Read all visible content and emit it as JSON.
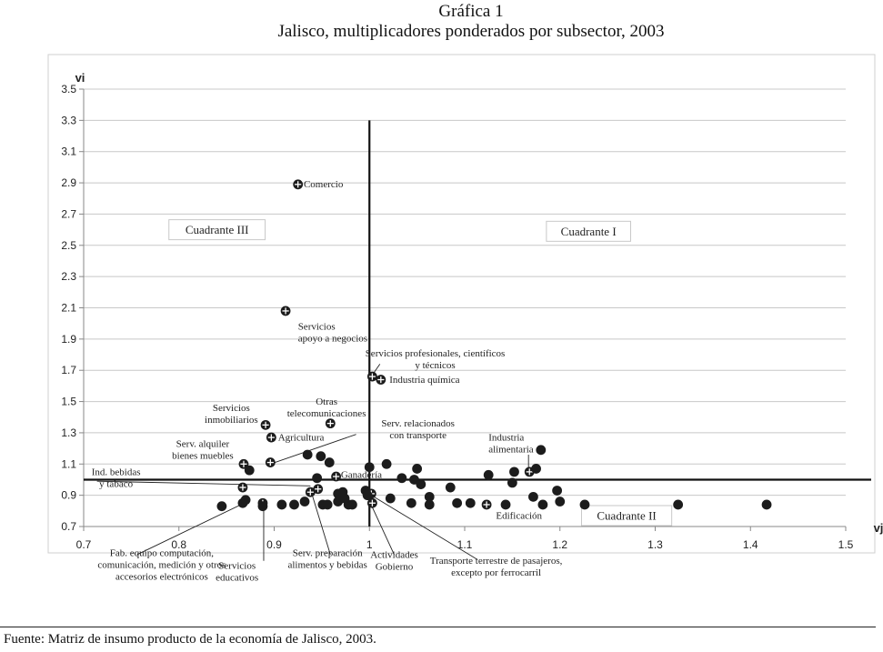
{
  "figure": {
    "title_line1": "Gráfica 1",
    "title_line2": "Jalisco, multiplicadores ponderados por subsector, 2003",
    "source": "Fuente: Matriz de insumo producto de la economía de Jalisco, 2003."
  },
  "chart_data": {
    "type": "scatter",
    "xlabel": "vj",
    "ylabel": "vi",
    "xlim": [
      0.7,
      1.5
    ],
    "ylim": [
      0.7,
      3.5
    ],
    "x_ticks": [
      0.7,
      0.8,
      0.9,
      1,
      1.1,
      1.2,
      1.3,
      1.4,
      1.5
    ],
    "x_tick_labels": [
      "0.7",
      "0.8",
      "0.9",
      "1",
      "1.1",
      "1.2",
      "1.3",
      "1.4",
      "1.5"
    ],
    "y_ticks": [
      0.7,
      0.9,
      1.1,
      1.3,
      1.5,
      1.7,
      1.9,
      2.1,
      2.3,
      2.5,
      2.7,
      2.9,
      3.1,
      3.3,
      3.5
    ],
    "y_tick_labels": [
      "0.7",
      "0.9",
      "1.1",
      "1.3",
      "1.5",
      "1.7",
      "1.9",
      "2.1",
      "2.3",
      "2.5",
      "2.7",
      "2.9",
      "3.1",
      "3.3",
      "3.5"
    ],
    "reference_lines": {
      "vertical_x": 1,
      "horizontal_y": 1,
      "vertical_top": 3.3
    },
    "gridlines": "horizontal",
    "quadrants": [
      {
        "label": "Cuadrante III",
        "x": 0.84,
        "y": 2.6
      },
      {
        "label": "Cuadrante I",
        "x": 1.23,
        "y": 2.59
      },
      {
        "label": "Cuadrante II",
        "x": 1.27,
        "y": 0.77
      }
    ],
    "points": [
      {
        "x": 0.925,
        "y": 2.89,
        "marked": true
      },
      {
        "x": 0.912,
        "y": 2.08,
        "marked": true
      },
      {
        "x": 1.003,
        "y": 1.66,
        "marked": true
      },
      {
        "x": 1.012,
        "y": 1.64,
        "marked": true
      },
      {
        "x": 0.891,
        "y": 1.35,
        "marked": true
      },
      {
        "x": 0.959,
        "y": 1.36,
        "marked": true
      },
      {
        "x": 0.897,
        "y": 1.27,
        "marked": true
      },
      {
        "x": 0.868,
        "y": 1.1,
        "marked": true
      },
      {
        "x": 0.896,
        "y": 1.11,
        "marked": true
      },
      {
        "x": 0.874,
        "y": 1.06,
        "marked": false
      },
      {
        "x": 0.935,
        "y": 1.16,
        "marked": false
      },
      {
        "x": 0.949,
        "y": 1.15,
        "marked": false
      },
      {
        "x": 0.958,
        "y": 1.11,
        "marked": false
      },
      {
        "x": 0.945,
        "y": 1.01,
        "marked": false
      },
      {
        "x": 0.965,
        "y": 1.02,
        "marked": true
      },
      {
        "x": 0.867,
        "y": 0.95,
        "marked": true
      },
      {
        "x": 0.938,
        "y": 0.92,
        "marked": true
      },
      {
        "x": 0.946,
        "y": 0.94,
        "marked": true
      },
      {
        "x": 0.967,
        "y": 0.91,
        "marked": false
      },
      {
        "x": 0.972,
        "y": 0.92,
        "marked": false
      },
      {
        "x": 0.996,
        "y": 0.93,
        "marked": false
      },
      {
        "x": 1.0,
        "y": 1.08,
        "marked": false
      },
      {
        "x": 1.018,
        "y": 1.1,
        "marked": false
      },
      {
        "x": 1.034,
        "y": 1.01,
        "marked": false
      },
      {
        "x": 1.047,
        "y": 1.0,
        "marked": false
      },
      {
        "x": 1.05,
        "y": 1.07,
        "marked": false
      },
      {
        "x": 1.054,
        "y": 0.97,
        "marked": false
      },
      {
        "x": 1.002,
        "y": 0.91,
        "marked": true
      },
      {
        "x": 0.998,
        "y": 0.9,
        "marked": false
      },
      {
        "x": 1.022,
        "y": 0.88,
        "marked": false
      },
      {
        "x": 1.063,
        "y": 0.89,
        "marked": false
      },
      {
        "x": 1.085,
        "y": 0.95,
        "marked": false
      },
      {
        "x": 1.125,
        "y": 1.03,
        "marked": false
      },
      {
        "x": 1.15,
        "y": 0.98,
        "marked": false
      },
      {
        "x": 1.152,
        "y": 1.05,
        "marked": false
      },
      {
        "x": 1.168,
        "y": 1.05,
        "marked": true
      },
      {
        "x": 1.175,
        "y": 1.07,
        "marked": false
      },
      {
        "x": 1.18,
        "y": 1.19,
        "marked": false
      },
      {
        "x": 1.172,
        "y": 0.89,
        "marked": false
      },
      {
        "x": 1.197,
        "y": 0.93,
        "marked": false
      },
      {
        "x": 0.845,
        "y": 0.83,
        "marked": false
      },
      {
        "x": 0.867,
        "y": 0.85,
        "marked": false
      },
      {
        "x": 0.87,
        "y": 0.87,
        "marked": false
      },
      {
        "x": 0.888,
        "y": 0.85,
        "marked": true
      },
      {
        "x": 0.888,
        "y": 0.83,
        "marked": false
      },
      {
        "x": 0.908,
        "y": 0.84,
        "marked": false
      },
      {
        "x": 0.921,
        "y": 0.84,
        "marked": false
      },
      {
        "x": 0.932,
        "y": 0.86,
        "marked": false
      },
      {
        "x": 0.951,
        "y": 0.84,
        "marked": false
      },
      {
        "x": 0.956,
        "y": 0.84,
        "marked": false
      },
      {
        "x": 0.967,
        "y": 0.86,
        "marked": false
      },
      {
        "x": 0.978,
        "y": 0.84,
        "marked": false
      },
      {
        "x": 0.982,
        "y": 0.84,
        "marked": false
      },
      {
        "x": 0.974,
        "y": 0.88,
        "marked": false
      },
      {
        "x": 1.003,
        "y": 0.85,
        "marked": true
      },
      {
        "x": 1.044,
        "y": 0.85,
        "marked": false
      },
      {
        "x": 1.063,
        "y": 0.84,
        "marked": false
      },
      {
        "x": 1.092,
        "y": 0.85,
        "marked": false
      },
      {
        "x": 1.106,
        "y": 0.85,
        "marked": false
      },
      {
        "x": 1.123,
        "y": 0.84,
        "marked": true
      },
      {
        "x": 1.143,
        "y": 0.84,
        "marked": false
      },
      {
        "x": 1.182,
        "y": 0.84,
        "marked": false
      },
      {
        "x": 1.2,
        "y": 0.86,
        "marked": false
      },
      {
        "x": 1.226,
        "y": 0.84,
        "marked": false
      },
      {
        "x": 1.324,
        "y": 0.84,
        "marked": false
      },
      {
        "x": 1.417,
        "y": 0.84,
        "marked": false
      }
    ],
    "annotations": [
      {
        "lines": [
          "Comercio"
        ],
        "x": 0.931,
        "y": 2.87,
        "anchor": "start"
      },
      {
        "lines": [
          "Servicios",
          "apoyo a negocios"
        ],
        "x": 0.925,
        "y": 1.96,
        "anchor": "start"
      },
      {
        "lines": [
          "Servicios profesionales, científicos",
          "y técnicos"
        ],
        "x": 1.069,
        "y": 1.79,
        "anchor": "middle"
      },
      {
        "lines": [
          "Industria química"
        ],
        "x": 1.021,
        "y": 1.62,
        "anchor": "start"
      },
      {
        "lines": [
          "Otras",
          "telecomunicaciones"
        ],
        "x": 0.955,
        "y": 1.48,
        "anchor": "middle"
      },
      {
        "lines": [
          "Servicios",
          "inmobiliarios"
        ],
        "x": 0.855,
        "y": 1.44,
        "anchor": "middle"
      },
      {
        "lines": [
          "Agricultura"
        ],
        "x": 0.904,
        "y": 1.25,
        "anchor": "start"
      },
      {
        "lines": [
          "Serv. relacionados",
          "con transporte"
        ],
        "x": 1.051,
        "y": 1.34,
        "anchor": "middle"
      },
      {
        "lines": [
          "Serv. alquiler",
          "bienes muebles"
        ],
        "x": 0.825,
        "y": 1.21,
        "anchor": "middle"
      },
      {
        "lines": [
          "Industria",
          "alimentaria"
        ],
        "x": 1.125,
        "y": 1.25,
        "anchor": "start"
      },
      {
        "lines": [
          "Ganadería"
        ],
        "x": 0.97,
        "y": 1.01,
        "anchor": "start"
      },
      {
        "lines": [
          "Ind. bebidas",
          "y tabaco"
        ],
        "x": 0.734,
        "y": 1.03,
        "anchor": "middle"
      },
      {
        "lines": [
          "Edificación"
        ],
        "x": 1.157,
        "y": 0.75,
        "anchor": "middle"
      },
      {
        "lines": [
          "Fab. equipo computación,",
          "comunicación, medición y otros",
          "accesorios electrónicos"
        ],
        "x": 0.782,
        "y": 0.51,
        "anchor": "middle"
      },
      {
        "lines": [
          "Servicios",
          "educativos"
        ],
        "x": 0.861,
        "y": 0.43,
        "anchor": "middle"
      },
      {
        "lines": [
          "Serv. preparación",
          "alimentos y bebidas"
        ],
        "x": 0.956,
        "y": 0.51,
        "anchor": "middle"
      },
      {
        "lines": [
          "Actividades",
          "Gobierno"
        ],
        "x": 1.026,
        "y": 0.5,
        "anchor": "middle"
      },
      {
        "lines": [
          "Transporte terrestre de pasajeros,",
          "excepto por ferrocarril"
        ],
        "x": 1.133,
        "y": 0.46,
        "anchor": "middle"
      }
    ],
    "leader_lines": [
      {
        "from": [
          0.986,
          1.29
        ],
        "to": [
          0.896,
          1.1
        ]
      },
      {
        "from": [
          1.011,
          1.74
        ],
        "to": [
          1.003,
          1.67
        ]
      },
      {
        "from": [
          0.714,
          0.99
        ],
        "to": [
          0.938,
          0.96
        ]
      },
      {
        "from": [
          0.756,
          0.52
        ],
        "to": [
          0.872,
          0.86
        ]
      },
      {
        "from": [
          0.889,
          0.48
        ],
        "to": [
          0.889,
          0.83
        ]
      },
      {
        "from": [
          0.959,
          0.52
        ],
        "to": [
          0.94,
          0.9
        ]
      },
      {
        "from": [
          1.026,
          0.52
        ],
        "to": [
          1.001,
          0.85
        ]
      },
      {
        "from": [
          1.113,
          0.49
        ],
        "to": [
          1.002,
          0.9
        ]
      },
      {
        "from": [
          1.167,
          1.16
        ],
        "to": [
          1.167,
          1.06
        ]
      }
    ]
  }
}
